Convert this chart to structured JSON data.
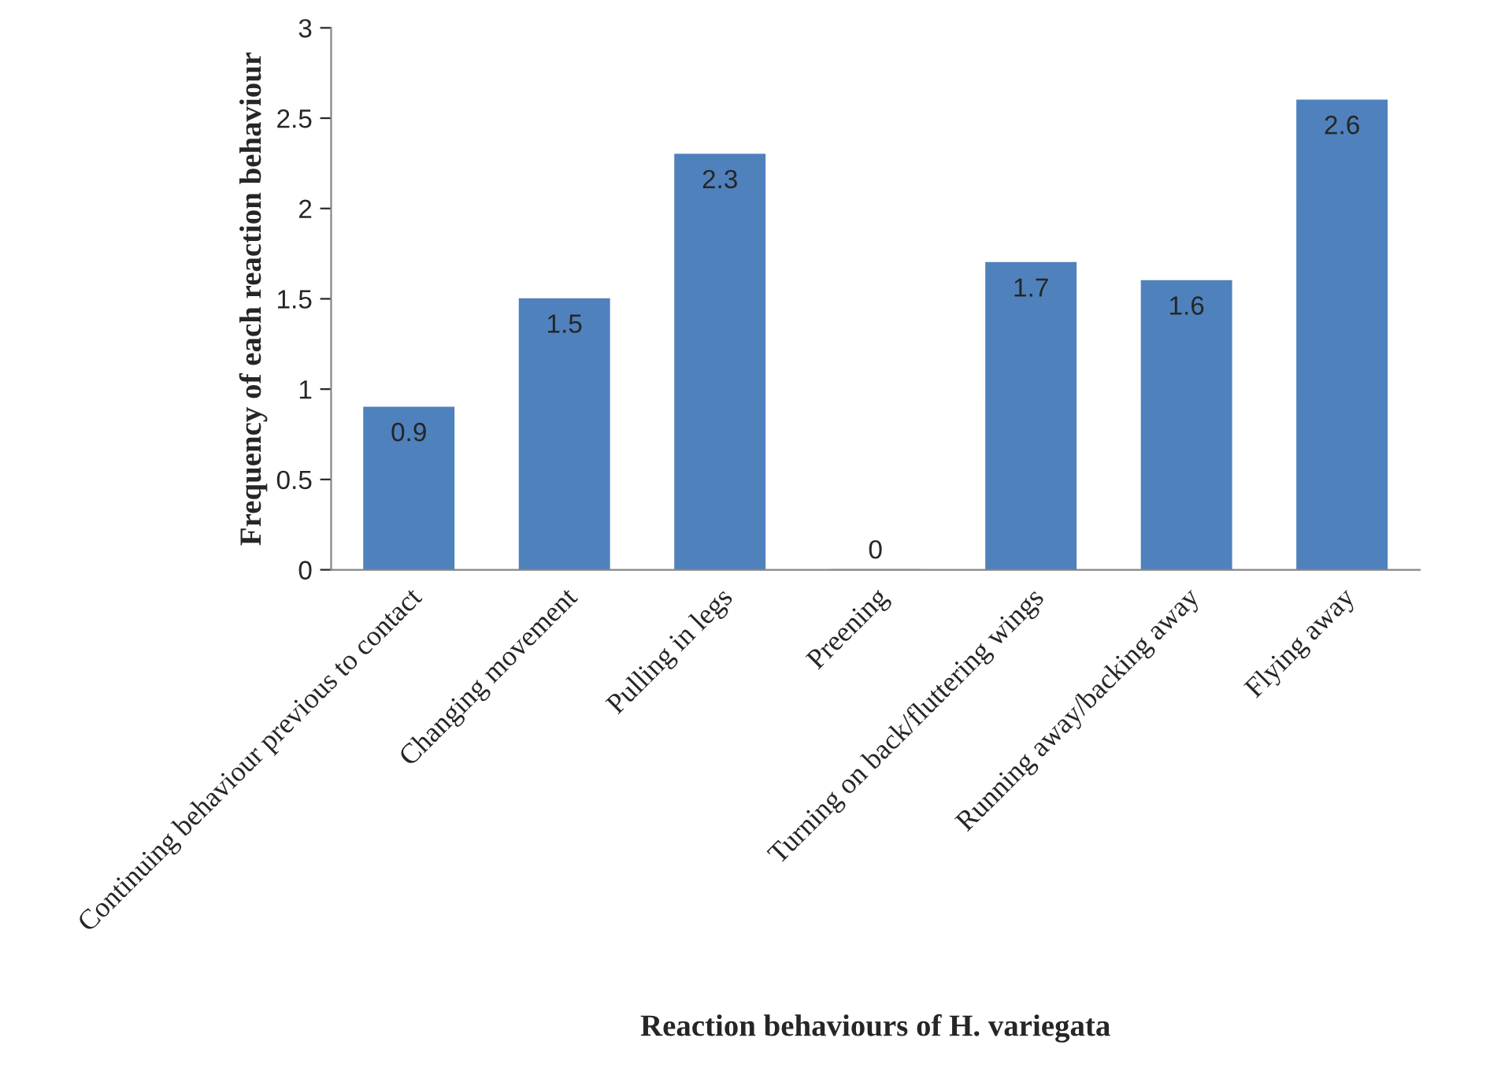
{
  "chart_data": {
    "type": "bar",
    "xlabel": "Reaction behaviours of H. variegata",
    "ylabel": "Frequency of each reaction behaviour",
    "categories": [
      "Continuing behaviour previous to contact",
      "Changing movement",
      "Pulling in legs",
      "Preening",
      "Turning on back/fluttering wings",
      "Running away/backing away",
      "Flying away"
    ],
    "values": [
      0.9,
      1.5,
      2.3,
      0,
      1.7,
      1.6,
      2.6
    ],
    "color": "#4f81bd",
    "ylim": [
      0,
      3
    ],
    "yticks": [
      0,
      0.5,
      1,
      1.5,
      2,
      2.5,
      3
    ],
    "data_labels": true,
    "grid": false,
    "legend": false
  }
}
